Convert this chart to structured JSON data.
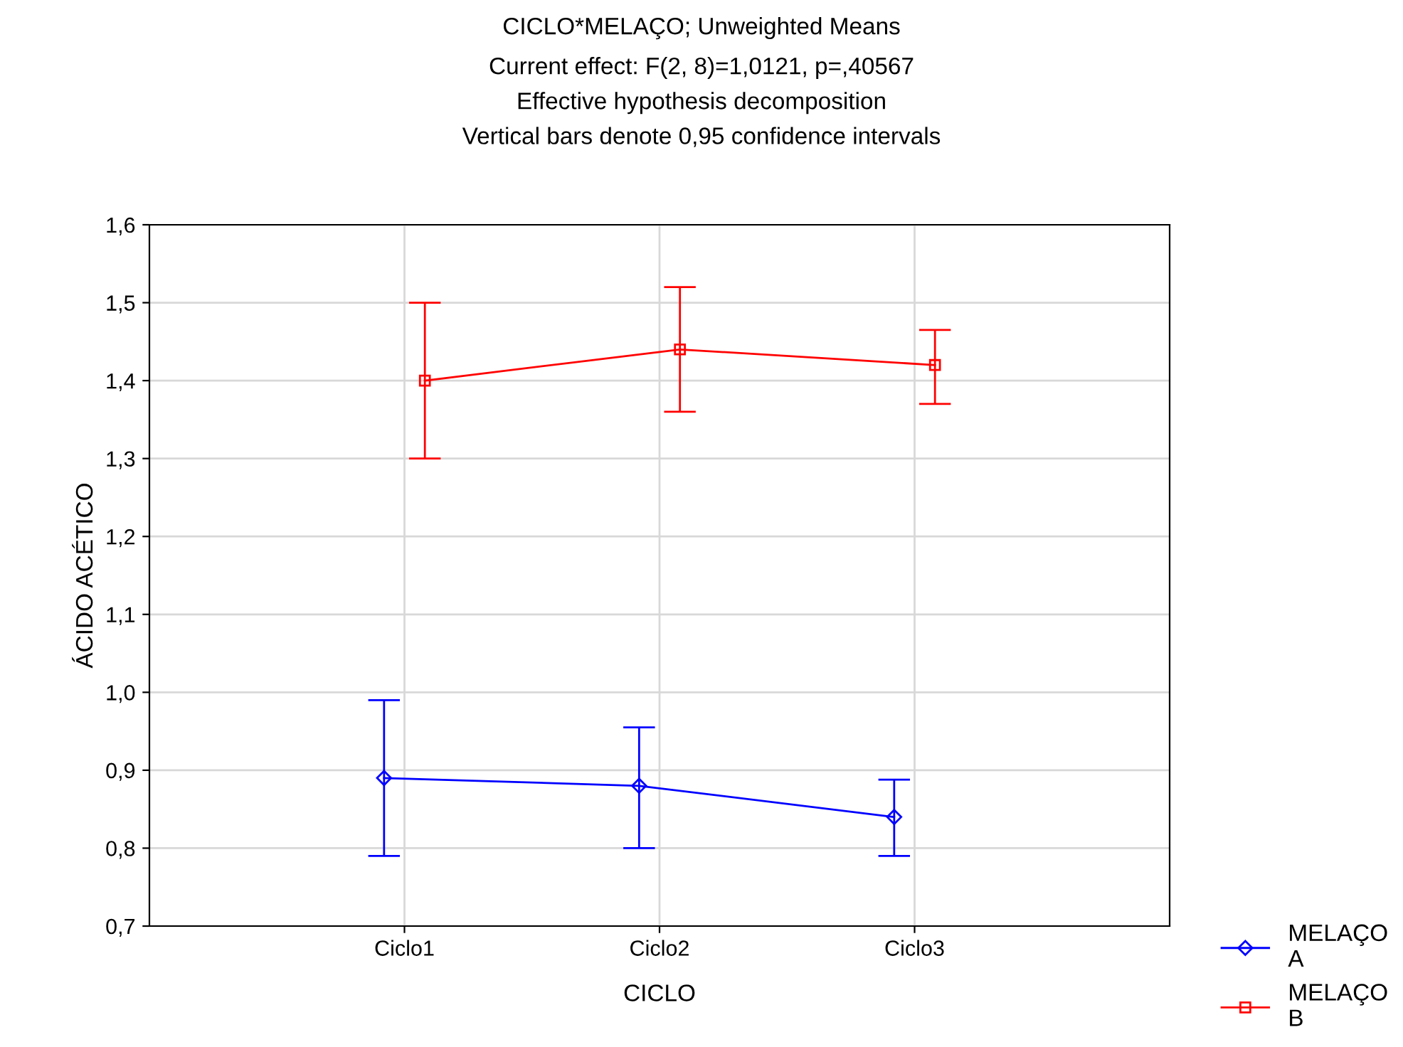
{
  "chart_data": {
    "type": "line",
    "title": "CICLO*MELAÇO; Unweighted Means",
    "subtitle": "Current effect: F(2, 8)=1,0121, p=,40567\nEffective hypothesis decomposition\nVertical bars denote 0,95 confidence intervals",
    "xlabel": "CICLO",
    "ylabel": "ÁCIDO ACÉTICO",
    "categories": [
      "Ciclo1",
      "Ciclo2",
      "Ciclo3"
    ],
    "series": [
      {
        "name": "MELAÇO\nA",
        "color": "#0000ff",
        "marker": "diamond",
        "values": [
          0.89,
          0.88,
          0.84
        ],
        "errors": [
          [
            0.79,
            0.99
          ],
          [
            0.8,
            0.955
          ],
          [
            0.79,
            0.888
          ]
        ]
      },
      {
        "name": "MELAÇO\nB",
        "color": "#ff0000",
        "marker": "square",
        "values": [
          1.4,
          1.44,
          1.42
        ],
        "errors": [
          [
            1.3,
            1.5
          ],
          [
            1.36,
            1.52
          ],
          [
            1.37,
            1.465
          ]
        ]
      }
    ],
    "ylim": [
      0.7,
      1.6
    ],
    "yticks": [
      {
        "value": 0.7,
        "label": "0,7"
      },
      {
        "value": 0.8,
        "label": "0,8"
      },
      {
        "value": 0.9,
        "label": "0,9"
      },
      {
        "value": 1.0,
        "label": "1,0"
      },
      {
        "value": 1.1,
        "label": "1,1"
      },
      {
        "value": 1.2,
        "label": "1,2"
      },
      {
        "value": 1.3,
        "label": "1,3"
      },
      {
        "value": 1.4,
        "label": "1,4"
      },
      {
        "value": 1.5,
        "label": "1,5"
      },
      {
        "value": 1.6,
        "label": "1,6"
      }
    ],
    "grid": true,
    "legend": "bottom right",
    "line_style": "solid"
  }
}
